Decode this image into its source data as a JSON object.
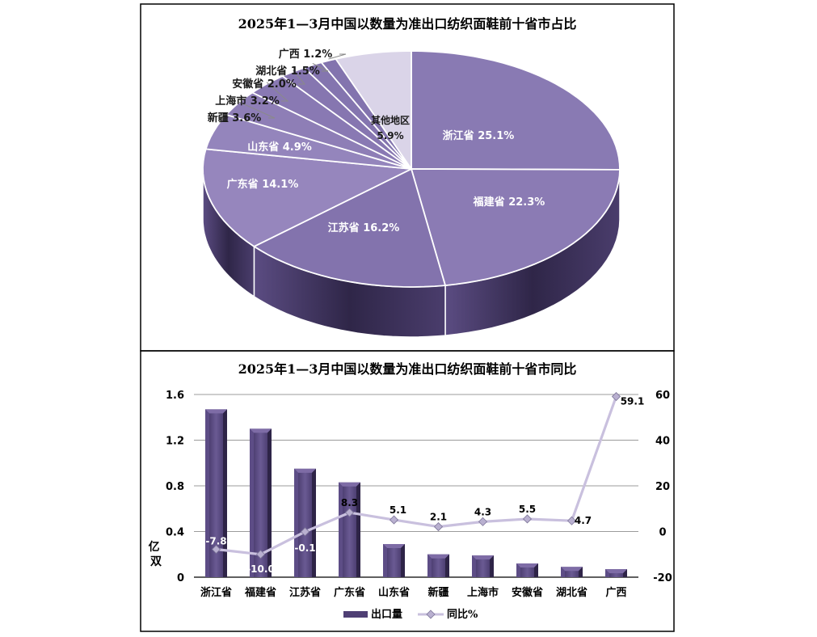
{
  "colors": {
    "pie_top_light": "#9f8fc3",
    "pie_top_dark": "#6d5d9c",
    "pie_side": "#3f3460",
    "pie_other": "#dad4e8",
    "bar_front": "#4f3f74",
    "bar_light": "#7e6ca6",
    "line": "#c9c0de",
    "axis": "#000000"
  },
  "chart_data": [
    {
      "type": "pie",
      "title": "2025年1—3月中国以数量为准出口纺织面鞋前十省市占比",
      "slices": [
        {
          "label": "浙江省",
          "value": 25.1,
          "text": "25.1%"
        },
        {
          "label": "福建省",
          "value": 22.3,
          "text": "22.3%"
        },
        {
          "label": "江苏省",
          "value": 16.2,
          "text": "16.2%"
        },
        {
          "label": "广东省",
          "value": 14.1,
          "text": "14.1%"
        },
        {
          "label": "山东省",
          "value": 4.9,
          "text": "4.9%"
        },
        {
          "label": "新疆",
          "value": 3.6,
          "text": "3.6%"
        },
        {
          "label": "上海市",
          "value": 3.2,
          "text": "3.2%"
        },
        {
          "label": "安徽省",
          "value": 2.0,
          "text": "2.0%"
        },
        {
          "label": "湖北省",
          "value": 1.5,
          "text": "1.5%"
        },
        {
          "label": "广西",
          "value": 1.2,
          "text": "1.2%"
        },
        {
          "label": "其他地区",
          "value": 5.9,
          "text": "5.9%"
        }
      ]
    },
    {
      "type": "bar",
      "title": "2025年1—3月中国以数量为准出口纺织面鞋前十省市同比",
      "categories": [
        "浙江省",
        "福建省",
        "江苏省",
        "广东省",
        "山东省",
        "新疆",
        "上海市",
        "安徽省",
        "湖北省",
        "广西"
      ],
      "series": [
        {
          "name": "出口量",
          "type": "bar",
          "axis": "left",
          "values": [
            1.47,
            1.3,
            0.95,
            0.83,
            0.29,
            0.2,
            0.19,
            0.12,
            0.09,
            0.07
          ]
        },
        {
          "name": "同比%",
          "type": "line",
          "axis": "right",
          "values": [
            -7.8,
            -10.0,
            -0.1,
            8.3,
            5.1,
            2.1,
            4.3,
            5.5,
            4.7,
            59.1
          ],
          "labels": [
            "-7.8",
            "-10.0",
            "-0.1",
            "8.3",
            "5.1",
            "2.1",
            "4.3",
            "5.5",
            "4.7",
            "59.1"
          ]
        }
      ],
      "ylabel": "亿双",
      "ylim": [
        0,
        1.6
      ],
      "yticks": [
        "0",
        "0.4",
        "0.8",
        "1.2",
        "1.6"
      ],
      "y2lim": [
        -20,
        60
      ],
      "y2ticks": [
        "-20",
        "0",
        "20",
        "40",
        "60"
      ],
      "grid": true,
      "legend_position": "bottom"
    }
  ]
}
